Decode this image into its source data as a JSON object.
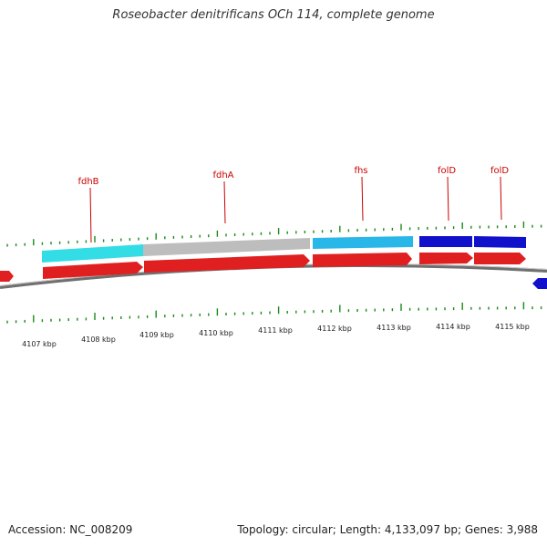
{
  "title": "Roseobacter denitrificans OCh 114, complete genome",
  "footer": {
    "accession": "Accession: NC_008209",
    "stats": "Topology: circular; Length: 4,133,097 bp; Genes: 3,988"
  },
  "map": {
    "topology": "circular",
    "colors": {
      "backbone": "#808080",
      "cds": "#e02020",
      "tick": "#1a8a1a",
      "gene_label": "#cc0000",
      "fdh": "#33dde6",
      "fdhA": "#bdbdbd",
      "fhs": "#29b6e8",
      "fol": "#1111cc"
    },
    "kbp_labels": [
      "4107 kbp",
      "4108 kbp",
      "4109 kbp",
      "4110 kbp",
      "4111 kbp",
      "4112 kbp",
      "4113 kbp",
      "4114 kbp",
      "4115 kbp"
    ],
    "gene_labels": [
      "fdhB",
      "fdhA",
      "fhs",
      "folD",
      "folD"
    ]
  }
}
